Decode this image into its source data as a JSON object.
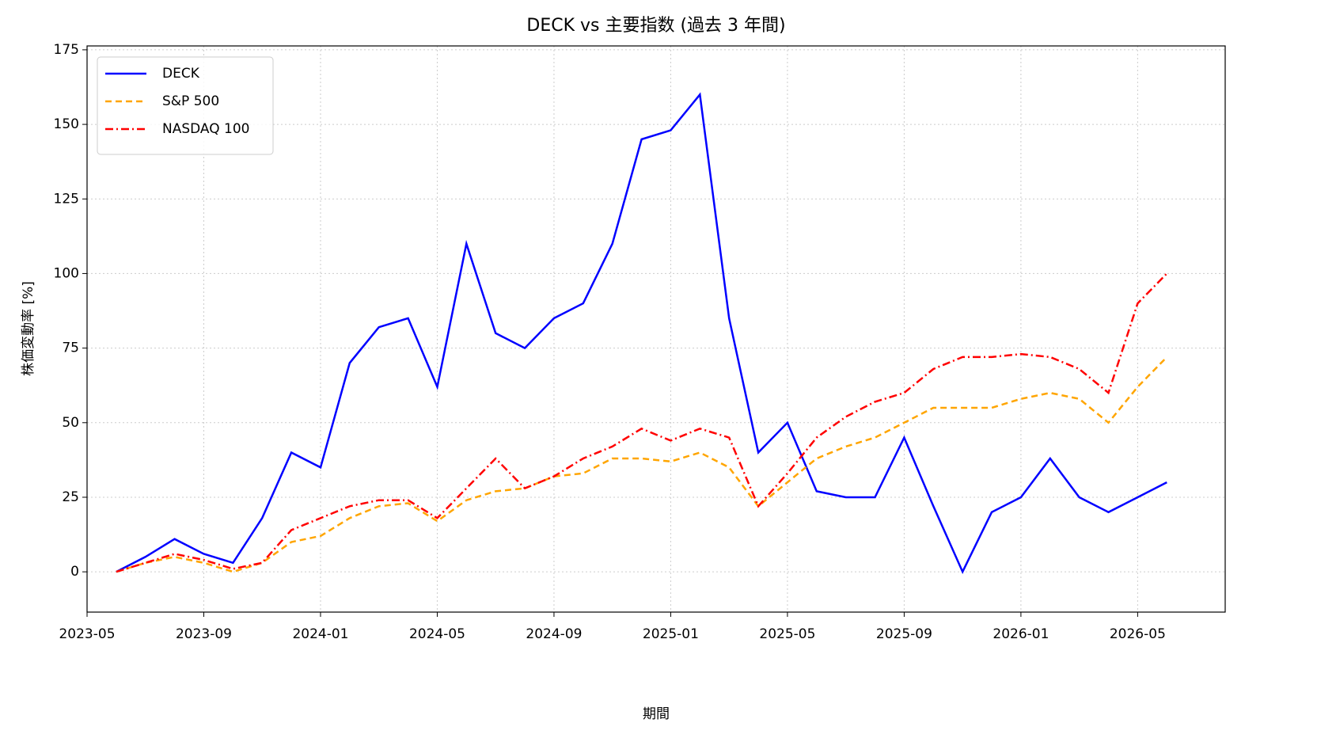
{
  "chart_data": {
    "type": "line",
    "title": "DECK vs 主要指数 (過去 3 年間)",
    "x_label": "期間",
    "y_label": "株価変動率 [%]",
    "x": [
      "2023-06",
      "2023-07",
      "2023-08",
      "2023-09",
      "2023-10",
      "2023-11",
      "2023-12",
      "2024-01",
      "2024-02",
      "2024-03",
      "2024-04",
      "2024-05",
      "2024-06",
      "2024-07",
      "2024-08",
      "2024-09",
      "2024-10",
      "2024-11",
      "2024-12",
      "2025-01",
      "2025-02",
      "2025-03",
      "2025-04",
      "2025-05",
      "2025-06",
      "2025-07",
      "2025-08",
      "2025-09",
      "2025-10",
      "2025-11",
      "2025-12",
      "2026-01",
      "2026-02",
      "2026-03",
      "2026-04",
      "2026-05",
      "2026-06"
    ],
    "series": [
      {
        "name": "DECK",
        "color": "#0000ff",
        "style": "solid",
        "values": [
          0,
          5,
          11,
          6,
          3,
          18,
          40,
          35,
          70,
          82,
          85,
          62,
          110,
          80,
          75,
          85,
          90,
          110,
          145,
          148,
          160,
          85,
          40,
          50,
          27,
          25,
          25,
          45,
          22,
          0,
          20,
          25,
          38,
          25,
          20,
          25,
          30
        ]
      },
      {
        "name": "S&P 500",
        "color": "#ffa500",
        "style": "dashed",
        "values": [
          0,
          3,
          5,
          3,
          0,
          3,
          10,
          12,
          18,
          22,
          23,
          17,
          24,
          27,
          28,
          32,
          33,
          38,
          38,
          37,
          40,
          35,
          22,
          30,
          38,
          42,
          45,
          50,
          55,
          55,
          55,
          58,
          60,
          58,
          50,
          62,
          72
        ]
      },
      {
        "name": "NASDAQ 100",
        "color": "#ff0000",
        "style": "dashdot",
        "values": [
          0,
          3,
          6,
          4,
          1,
          3,
          14,
          18,
          22,
          24,
          24,
          18,
          28,
          38,
          28,
          32,
          38,
          42,
          48,
          44,
          48,
          45,
          22,
          33,
          45,
          52,
          57,
          60,
          68,
          72,
          72,
          73,
          72,
          68,
          60,
          90,
          100
        ]
      }
    ],
    "xlim": [
      "2023-05",
      "2026-08"
    ],
    "xticks": [
      "2023-05",
      "2023-09",
      "2024-01",
      "2024-05",
      "2024-09",
      "2025-01",
      "2025-05",
      "2025-09",
      "2026-01",
      "2026-05"
    ],
    "ylim": [
      -13.5,
      176.3
    ],
    "yticks": [
      0,
      25,
      50,
      75,
      100,
      125,
      150,
      175
    ],
    "grid": true,
    "legend": "upper-left"
  }
}
